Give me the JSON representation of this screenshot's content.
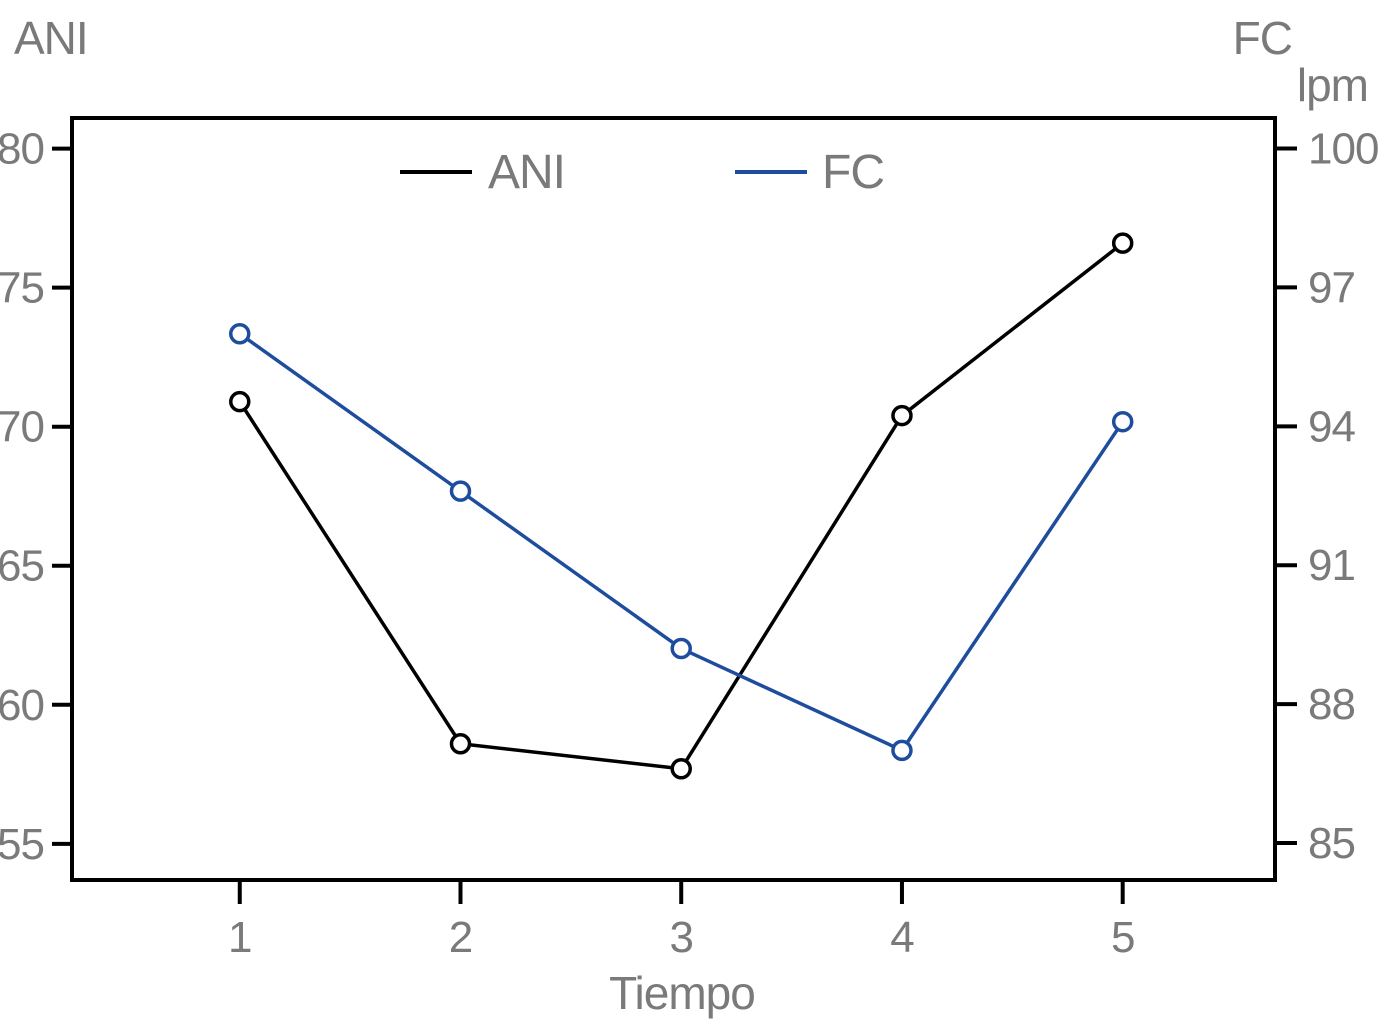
{
  "chart_data": {
    "type": "line",
    "title": "",
    "xlabel": "Tiempo",
    "x": [
      1,
      2,
      3,
      4,
      5
    ],
    "x_tick_labels": [
      "1",
      "2",
      "3",
      "4",
      "5"
    ],
    "xlim": [
      0.24,
      5.69
    ],
    "grid": false,
    "marker": "open-circle",
    "legend_position": "top-center-inside",
    "text_color": "#7a7a7a",
    "axis_color": "#000000",
    "left_axis": {
      "label": "ANI",
      "ticks": [
        80,
        75,
        70,
        65,
        60,
        55
      ],
      "range": [
        53.7,
        81.1
      ]
    },
    "right_axis": {
      "label": "FC",
      "sublabel": "lpm",
      "ticks": [
        100,
        97,
        94,
        91,
        88,
        85
      ],
      "range": [
        84.2,
        100.66
      ]
    },
    "series": [
      {
        "name": "ANI",
        "axis": "left",
        "color": "#000000",
        "values": [
          70.9,
          58.6,
          57.7,
          70.4,
          76.6
        ]
      },
      {
        "name": "FC",
        "axis": "right",
        "color": "#1e4d9e",
        "values": [
          96.0,
          92.6,
          89.2,
          87.0,
          94.1
        ]
      }
    ]
  }
}
